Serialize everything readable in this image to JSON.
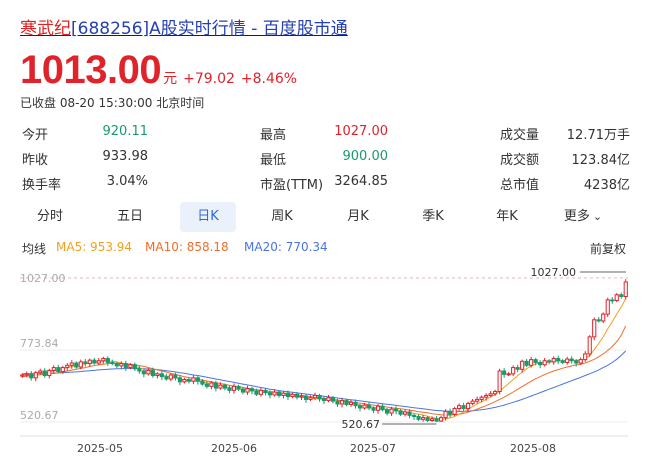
{
  "header": {
    "title_name": "寒武纪",
    "title_rest": "[688256]A股实时行情 - 百度股市通"
  },
  "quote": {
    "price": "1013.00",
    "unit": "元",
    "change": "+79.02",
    "change_pct": "+8.46%",
    "status": "已收盘 08-20 15:30:00 北京时间",
    "up_color": "#e0222a",
    "down_color": "#1a9a6c"
  },
  "stats": [
    {
      "label": "今开",
      "value": "920.11",
      "color": "#1a9a6c"
    },
    {
      "label": "昨收",
      "value": "933.98",
      "color": "#333333"
    },
    {
      "label": "换手率",
      "value": "3.04%",
      "color": "#333333"
    },
    {
      "label": "最高",
      "value": "1027.00",
      "color": "#e0222a"
    },
    {
      "label": "最低",
      "value": "900.00",
      "color": "#1a9a6c"
    },
    {
      "label": "市盈(TTM)",
      "value": "3264.85",
      "color": "#333333"
    },
    {
      "label": "成交量",
      "value": "12.71万手",
      "color": "#333333"
    },
    {
      "label": "成交额",
      "value": "123.84亿",
      "color": "#333333"
    },
    {
      "label": "总市值",
      "value": "4238亿",
      "color": "#333333"
    }
  ],
  "tabs": [
    "分时",
    "五日",
    "日K",
    "周K",
    "月K",
    "季K",
    "年K",
    "更多"
  ],
  "active_tab": "日K",
  "indicators": {
    "label": "均线",
    "ma5": "MA5: 953.94",
    "ma10": "MA10: 858.18",
    "ma20": "MA20: 770.34",
    "adjust": "前复权",
    "ma5_color": "#f0a020",
    "ma10_color": "#f06e2a",
    "ma20_color": "#4a74e0"
  },
  "chart_data": {
    "type": "candlestick",
    "y_ticks": [
      "1027.00",
      "773.84",
      "520.67"
    ],
    "x_ticks": [
      "2025-05",
      "2025-06",
      "2025-07",
      "2025-08"
    ],
    "ylim": [
      520.67,
      1027.0
    ],
    "high_label": "1027.00",
    "low_label": "520.67",
    "close": [
      686,
      690,
      676,
      694,
      700,
      684,
      702,
      712,
      698,
      712,
      720,
      728,
      714,
      732,
      726,
      738,
      728,
      736,
      744,
      730,
      726,
      718,
      726,
      712,
      722,
      708,
      700,
      690,
      702,
      684,
      690,
      680,
      672,
      686,
      676,
      662,
      670,
      664,
      676,
      664,
      654,
      646,
      658,
      640,
      650,
      640,
      632,
      646,
      636,
      626,
      638,
      630,
      618,
      632,
      624,
      616,
      626,
      614,
      622,
      610,
      618,
      608,
      612,
      600,
      606,
      614,
      602,
      596,
      606,
      594,
      584,
      596,
      582,
      590,
      578,
      570,
      580,
      570,
      562,
      576,
      564,
      552,
      566,
      560,
      548,
      556,
      544,
      540,
      530,
      536,
      526,
      532,
      524,
      536,
      558,
      548,
      568,
      578,
      568,
      586,
      594,
      600,
      608,
      614,
      620,
      628,
      700,
      688,
      690,
      712,
      706,
      734,
      720,
      740,
      730,
      722,
      736,
      732,
      744,
      736,
      730,
      742,
      736,
      728,
      740,
      760,
      820,
      880,
      876,
      900,
      950,
      948,
      968,
      962,
      1013
    ],
    "ma5": [
      684,
      686,
      688,
      689,
      692,
      693,
      695,
      700,
      704,
      708,
      712,
      716,
      718,
      722,
      725,
      728,
      730,
      732,
      735,
      735,
      734,
      732,
      728,
      725,
      720,
      717,
      712,
      706,
      700,
      694,
      690,
      686,
      682,
      678,
      676,
      672,
      668,
      666,
      666,
      665,
      662,
      659,
      656,
      653,
      649,
      645,
      642,
      640,
      639,
      636,
      634,
      631,
      628,
      626,
      624,
      622,
      620,
      618,
      616,
      614,
      613,
      611,
      609,
      606,
      604,
      603,
      602,
      601,
      600,
      598,
      596,
      593,
      590,
      587,
      584,
      580,
      578,
      575,
      572,
      570,
      568,
      565,
      562,
      561,
      559,
      556,
      553,
      551,
      548,
      545,
      541,
      537,
      533,
      531,
      532,
      535,
      540,
      548,
      556,
      566,
      575,
      584,
      592,
      600,
      609,
      617,
      629,
      643,
      656,
      670,
      684,
      696,
      708,
      718,
      725,
      728,
      730,
      731,
      733,
      735,
      736,
      737,
      738,
      738,
      738,
      743,
      755,
      775,
      797,
      820,
      848,
      873,
      900,
      925,
      953.94
    ],
    "ma10": [
      680,
      682,
      683,
      685,
      687,
      688,
      690,
      692,
      694,
      697,
      700,
      703,
      706,
      709,
      712,
      716,
      719,
      722,
      724,
      726,
      727,
      727,
      727,
      726,
      724,
      722,
      719,
      716,
      712,
      708,
      704,
      700,
      696,
      692,
      688,
      684,
      680,
      677,
      674,
      671,
      668,
      665,
      662,
      659,
      656,
      653,
      650,
      647,
      645,
      642,
      639,
      637,
      634,
      632,
      630,
      628,
      626,
      624,
      622,
      620,
      618,
      616,
      614,
      612,
      610,
      608,
      606,
      604,
      602,
      600,
      598,
      596,
      594,
      592,
      589,
      587,
      585,
      582,
      580,
      578,
      576,
      573,
      571,
      569,
      567,
      565,
      562,
      560,
      557,
      555,
      553,
      550,
      548,
      546,
      545,
      545,
      546,
      548,
      551,
      555,
      560,
      566,
      572,
      578,
      585,
      592,
      600,
      608,
      617,
      626,
      636,
      645,
      655,
      664,
      673,
      680,
      688,
      694,
      700,
      705,
      710,
      714,
      718,
      721,
      724,
      728,
      734,
      741,
      750,
      760,
      772,
      786,
      803,
      825,
      858.18
    ],
    "ma20": [
      690,
      690,
      690,
      690,
      691,
      691,
      692,
      692,
      693,
      694,
      695,
      696,
      697,
      698,
      700,
      701,
      702,
      704,
      705,
      706,
      707,
      708,
      708,
      709,
      709,
      709,
      709,
      708,
      707,
      706,
      705,
      703,
      701,
      699,
      697,
      694,
      692,
      689,
      686,
      684,
      681,
      678,
      675,
      672,
      669,
      666,
      663,
      660,
      657,
      654,
      651,
      648,
      645,
      642,
      639,
      636,
      634,
      631,
      629,
      627,
      625,
      623,
      621,
      619,
      617,
      615,
      613,
      611,
      609,
      607,
      605,
      603,
      601,
      599,
      597,
      595,
      593,
      591,
      589,
      587,
      585,
      583,
      581,
      579,
      577,
      575,
      573,
      571,
      569,
      567,
      565,
      563,
      561,
      560,
      559,
      558,
      558,
      558,
      558,
      559,
      560,
      562,
      564,
      566,
      569,
      572,
      576,
      580,
      585,
      590,
      595,
      600,
      606,
      612,
      618,
      624,
      630,
      636,
      642,
      648,
      654,
      660,
      666,
      672,
      678,
      684,
      690,
      697,
      704,
      712,
      720,
      730,
      741,
      755,
      770.34
    ]
  }
}
